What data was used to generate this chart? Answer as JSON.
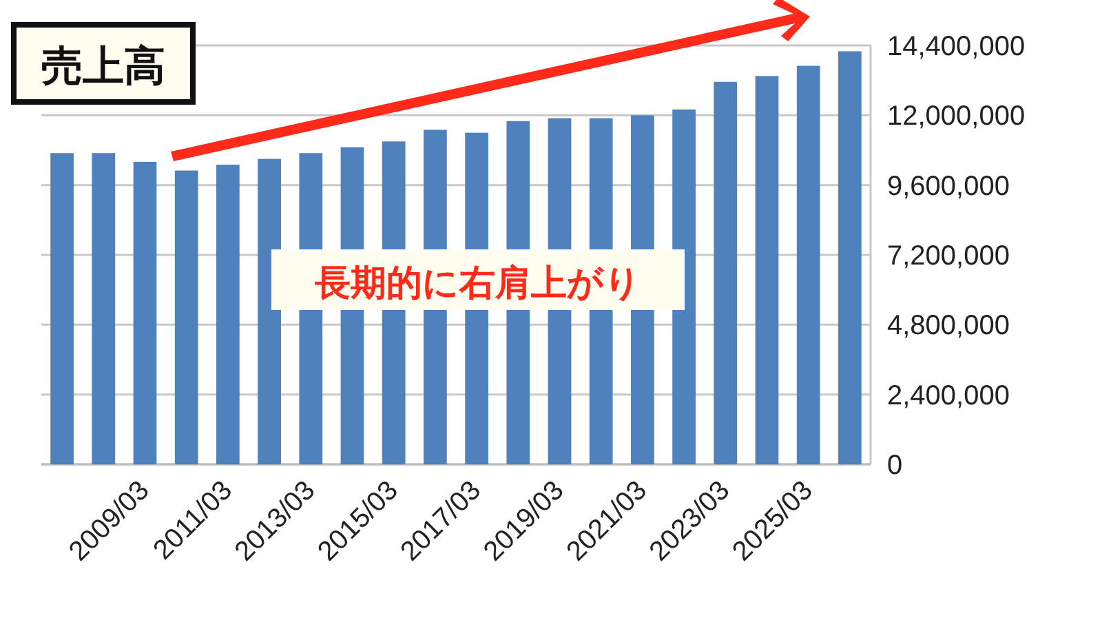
{
  "chart_data": {
    "type": "bar",
    "title": "売上高",
    "categories": [
      null,
      null,
      "2009/03",
      null,
      "2011/03",
      null,
      "2013/03",
      null,
      "2015/03",
      null,
      "2017/03",
      null,
      "2019/03",
      null,
      "2021/03",
      null,
      "2023/03",
      null,
      "2025/03",
      null
    ],
    "values": [
      10700000,
      10700000,
      10400000,
      10100000,
      10300000,
      10500000,
      10700000,
      10900000,
      11100000,
      11500000,
      11400000,
      11800000,
      11900000,
      11900000,
      12000000,
      12200000,
      13150000,
      13350000,
      13700000,
      14200000
    ],
    "color": "#4f81bd",
    "ylim": [
      0,
      14400000
    ],
    "yticks": [
      {
        "value": 0,
        "label": "0"
      },
      {
        "value": 2400000,
        "label": "2,400,000"
      },
      {
        "value": 4800000,
        "label": "4,800,000"
      },
      {
        "value": 7200000,
        "label": "7,200,000"
      },
      {
        "value": 9600000,
        "label": "9,600,000"
      },
      {
        "value": 12000000,
        "label": "12,000,000"
      },
      {
        "value": 14400000,
        "label": "14,400,000"
      }
    ],
    "grid": "y",
    "annotations": [
      "長期的に右肩上がり"
    ]
  }
}
